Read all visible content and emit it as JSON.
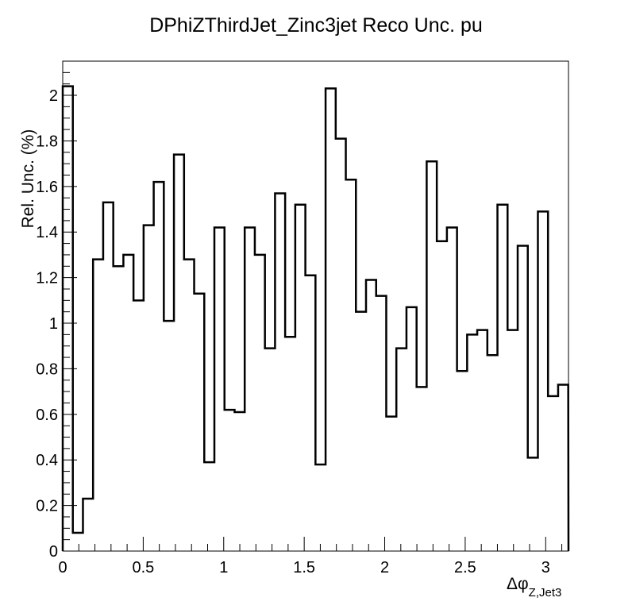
{
  "chart_data": {
    "type": "histogram",
    "title": "DPhiZThirdJet_Zinc3jet Reco Unc. pu",
    "xlabel": "Δφ",
    "xlabel_subscript": "Z,Jet3",
    "ylabel": "Rel. Unc. (%)",
    "xlim": [
      0,
      3.14159
    ],
    "ylim": [
      0,
      2.15
    ],
    "x_ticks": [
      0,
      0.5,
      1,
      1.5,
      2,
      2.5,
      3
    ],
    "x_tick_labels": [
      "0",
      "0.5",
      "1",
      "1.5",
      "2",
      "2.5",
      "3"
    ],
    "y_ticks": [
      0,
      0.2,
      0.4,
      0.6,
      0.8,
      1,
      1.2,
      1.4,
      1.6,
      1.8,
      2
    ],
    "y_tick_labels": [
      "0",
      "0.2",
      "0.4",
      "0.6",
      "0.8",
      "1",
      "1.2",
      "1.4",
      "1.6",
      "1.8",
      "2"
    ],
    "grid": false,
    "legend": "none",
    "bin_width": 0.0628,
    "values": [
      2.04,
      0.08,
      0.23,
      1.28,
      1.53,
      1.25,
      1.3,
      1.1,
      1.43,
      1.62,
      1.01,
      1.74,
      1.28,
      1.13,
      0.39,
      1.42,
      0.62,
      0.61,
      1.42,
      1.3,
      0.89,
      1.57,
      0.94,
      1.52,
      1.21,
      0.38,
      2.03,
      1.81,
      1.63,
      1.05,
      1.19,
      1.12,
      0.59,
      0.89,
      1.07,
      0.72,
      1.71,
      1.36,
      1.42,
      0.79,
      0.95,
      0.97,
      0.86,
      1.52,
      0.97,
      1.34,
      0.41,
      1.49,
      0.68,
      0.73
    ]
  }
}
